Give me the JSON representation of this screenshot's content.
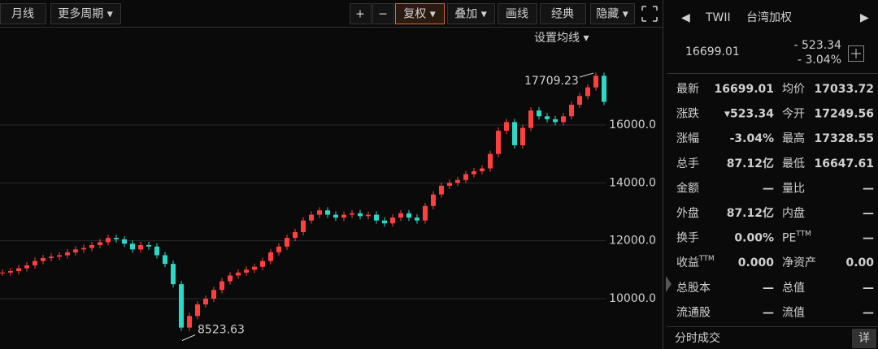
{
  "toolbar": [
    "月线",
    "更多周期 ▾",
    "+",
    "−",
    "复权 ▾",
    "叠加 ▾",
    "画线",
    "经典",
    "隐藏 ▾"
  ],
  "ma_setting": "设置均线 ▾",
  "chart_data": {
    "type": "candlestick",
    "values": [
      10900,
      10950,
      11050,
      11150,
      11300,
      11400,
      11450,
      11500,
      11600,
      11700,
      11750,
      11850,
      11950,
      12100,
      12050,
      11900,
      11700,
      11850,
      11800,
      11500,
      11200,
      10500,
      9000,
      9400,
      9800,
      10000,
      10300,
      10600,
      10800,
      10900,
      11000,
      11100,
      11300,
      11600,
      11800,
      12100,
      12300,
      12700,
      12900,
      13050,
      12900,
      12800,
      12900,
      12950,
      12850,
      12900,
      12700,
      12600,
      12800,
      12950,
      12800,
      12700,
      13200,
      13600,
      13900,
      14000,
      14100,
      14300,
      14400,
      14500,
      15000,
      15800,
      16100,
      15300,
      15900,
      16500,
      16300,
      16200,
      16100,
      16300,
      16700,
      17000,
      17300,
      17700,
      16800
    ],
    "up_color": "#ff4040",
    "down_color": "#2bd9c6",
    "ylim": [
      8260,
      18580
    ],
    "yticks": [
      {
        "value": 10000,
        "label": "10000.0"
      },
      {
        "value": 12000,
        "label": "12000.0"
      },
      {
        "value": 14000,
        "label": "14000.0"
      },
      {
        "value": 16000,
        "label": "16000.0"
      }
    ],
    "grid": true,
    "high": 17709.23,
    "low": 8523.63
  },
  "quote": {
    "code": "TWII",
    "name": "台湾加权",
    "price": "16699.01",
    "change": "- 523.34",
    "change_pct": "- 3.04%",
    "rows": [
      [
        {
          "label": "最新",
          "value": "16699.01",
          "color": "#2fd45a"
        },
        {
          "label": "均价",
          "value": "17033.72",
          "color": "#2fd45a"
        }
      ],
      [
        {
          "label": "涨跌",
          "value": "▾523.34",
          "color": "#2fd45a"
        },
        {
          "label": "今开",
          "value": "17249.56",
          "color": "#ff4b4b"
        }
      ],
      [
        {
          "label": "涨幅",
          "value": "-3.04%",
          "color": "#2fd45a"
        },
        {
          "label": "最高",
          "value": "17328.55",
          "color": "#ff4b4b"
        }
      ],
      [
        {
          "label": "总手",
          "value": "87.12亿",
          "color": "#e6e6e6"
        },
        {
          "label": "最低",
          "value": "16647.61",
          "color": "#2fd45a"
        }
      ],
      [
        {
          "label": "金额",
          "value": "—",
          "color": "#2bd9c6"
        },
        {
          "label": "量比",
          "value": "—",
          "color": "#e6e6e6"
        }
      ],
      [
        {
          "label": "外盘",
          "value": "87.12亿",
          "color": "#ff4b4b"
        },
        {
          "label": "内盘",
          "value": "—",
          "color": "#2fd45a"
        }
      ],
      [
        {
          "label": "换手",
          "value": "0.00%",
          "color": "#e6e6e6"
        },
        {
          "label": "PE",
          "sup": "TTM",
          "value": "—",
          "color": "#e6e6e6"
        }
      ],
      [
        {
          "label": "收益",
          "sup": "TTM",
          "value": "0.000",
          "color": "#e6e6e6"
        },
        {
          "label": "净资产",
          "value": "0.00",
          "color": "#e6e6e6"
        }
      ],
      [
        {
          "label": "总股本",
          "value": "—",
          "color": "#e6e6e6"
        },
        {
          "label": "总值",
          "value": "—",
          "color": "#e6e6e6"
        }
      ],
      [
        {
          "label": "流通股",
          "value": "—",
          "color": "#e6e6e6"
        },
        {
          "label": "流值",
          "value": "—",
          "color": "#e6e6e6"
        }
      ]
    ],
    "trades": "分时成交",
    "detail": "详"
  }
}
